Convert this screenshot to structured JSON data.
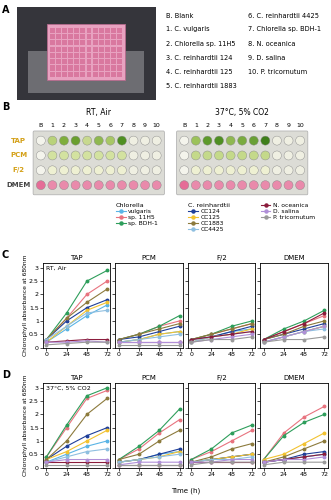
{
  "panel_a": {
    "label": "A"
  },
  "strain_key": {
    "items": [
      "B. Blank",
      "1. C. vulgaris",
      "2. Chlorella sp. 11H5",
      "3. C. reinhardtii 124",
      "4. C. reinhardtii 125",
      "5. C. reinhardtii 1883",
      "6. C. reinhardtii 4425",
      "7. Chlorella sp. BDH-1",
      "8. N. oceanica",
      "9. D. salina",
      "10. P. tricornutum"
    ]
  },
  "panel_b": {
    "label": "B",
    "conditions": [
      "RT, Air",
      "37°C, 5% CO2"
    ],
    "columns": [
      "B",
      "1",
      "2",
      "3",
      "4",
      "5",
      "6",
      "7",
      "8",
      "9",
      "10"
    ],
    "rows": [
      "TAP",
      "PCM",
      "F/2",
      "DMEM"
    ]
  },
  "legend_groups": [
    {
      "title": "Chlorella",
      "series": [
        "vulgaris",
        "sp. 11H5",
        "sp. BDH-1"
      ]
    },
    {
      "title": "C. reinhardtii",
      "series": [
        "CC124",
        "CC125",
        "CC1883",
        "CC4425"
      ]
    },
    {
      "series": [
        "N. oceanica",
        "D. salina",
        "P. tricornutum"
      ]
    }
  ],
  "x_label": "Time (h)",
  "chart_data": [
    {
      "type": "line",
      "title": "TAP",
      "panel_label": "C",
      "annotation": "RT, Air",
      "y_label": "Chlorophyll absorbance at 680nm",
      "x": [
        0,
        24,
        48,
        72
      ],
      "xlim": [
        -4,
        76
      ],
      "xticks": [
        0,
        24,
        48,
        72
      ],
      "ylim": [
        0,
        3.2
      ],
      "yticks": [
        0,
        0.5,
        1,
        1.5,
        2,
        2.5,
        3
      ],
      "marker": "o",
      "tick_labels": true,
      "series": [
        {
          "name": "vulgaris",
          "color": "#5ab4e5",
          "values": [
            0.2,
            0.7,
            1.2,
            1.6
          ]
        },
        {
          "name": "sp. 11H5",
          "color": "#e8737f",
          "values": [
            0.3,
            1.1,
            2.0,
            2.5
          ]
        },
        {
          "name": "sp. BDH-1",
          "color": "#2e9e5b",
          "values": [
            0.3,
            1.3,
            2.5,
            2.9
          ]
        },
        {
          "name": "CC124",
          "color": "#1f3f99",
          "values": [
            0.3,
            1.0,
            1.5,
            1.8
          ]
        },
        {
          "name": "CC125",
          "color": "#f2c230",
          "values": [
            0.2,
            0.8,
            1.4,
            1.7
          ]
        },
        {
          "name": "CC1883",
          "color": "#8c7a3c",
          "values": [
            0.3,
            1.1,
            1.7,
            2.2
          ]
        },
        {
          "name": "CC4425",
          "color": "#8fbfe0",
          "values": [
            0.3,
            0.8,
            1.3,
            1.4
          ]
        },
        {
          "name": "N. oceanica",
          "color": "#8b1c3c",
          "values": [
            0.2,
            0.25,
            0.3,
            0.3
          ]
        },
        {
          "name": "D. salina",
          "color": "#b08fd8",
          "values": [
            0.2,
            0.2,
            0.25,
            0.2
          ]
        },
        {
          "name": "P. tricornutum",
          "color": "#9a9a9a",
          "values": [
            0.1,
            0.15,
            0.2,
            0.2
          ]
        }
      ]
    },
    {
      "type": "line",
      "title": "PCM",
      "x": [
        0,
        24,
        48,
        72
      ],
      "xlim": [
        -4,
        76
      ],
      "xticks": [
        0,
        24,
        48,
        72
      ],
      "ylim": [
        0,
        3.2
      ],
      "yticks": [
        0,
        0.5,
        1,
        1.5,
        2,
        2.5,
        3
      ],
      "marker": "o",
      "tick_labels": "x",
      "series": [
        {
          "name": "vulgaris",
          "color": "#5ab4e5",
          "values": [
            0.2,
            0.3,
            0.5,
            0.6
          ]
        },
        {
          "name": "sp. 11H5",
          "color": "#e8737f",
          "values": [
            0.3,
            0.5,
            0.8,
            1.0
          ]
        },
        {
          "name": "sp. BDH-1",
          "color": "#2e9e5b",
          "values": [
            0.3,
            0.5,
            0.8,
            1.2
          ]
        },
        {
          "name": "CC124",
          "color": "#1f3f99",
          "values": [
            0.3,
            0.4,
            0.6,
            0.8
          ]
        },
        {
          "name": "CC125",
          "color": "#f2c230",
          "values": [
            0.2,
            0.3,
            0.5,
            0.6
          ]
        },
        {
          "name": "CC1883",
          "color": "#8c7a3c",
          "values": [
            0.3,
            0.5,
            0.7,
            0.9
          ]
        },
        {
          "name": "CC4425",
          "color": "#8fbfe0",
          "values": [
            0.2,
            0.3,
            0.4,
            0.5
          ]
        },
        {
          "name": "N. oceanica",
          "color": "#8b1c3c",
          "values": [
            0.2,
            0.2,
            0.2,
            0.2
          ]
        },
        {
          "name": "D. salina",
          "color": "#b08fd8",
          "values": [
            0.2,
            0.2,
            0.2,
            0.2
          ]
        },
        {
          "name": "P. tricornutum",
          "color": "#9a9a9a",
          "values": [
            0.1,
            0.1,
            0.1,
            0.1
          ]
        }
      ]
    },
    {
      "type": "line",
      "title": "F/2",
      "x": [
        0,
        24,
        48,
        72
      ],
      "xlim": [
        -4,
        76
      ],
      "xticks": [
        0,
        24,
        48,
        72
      ],
      "ylim": [
        0,
        3.2
      ],
      "yticks": [
        0,
        0.5,
        1,
        1.5,
        2,
        2.5,
        3
      ],
      "marker": "o",
      "tick_labels": "x",
      "series": [
        {
          "name": "vulgaris",
          "color": "#5ab4e5",
          "values": [
            0.2,
            0.4,
            0.6,
            0.7
          ]
        },
        {
          "name": "sp. 11H5",
          "color": "#e8737f",
          "values": [
            0.3,
            0.5,
            0.7,
            0.9
          ]
        },
        {
          "name": "sp. BDH-1",
          "color": "#2e9e5b",
          "values": [
            0.3,
            0.5,
            0.8,
            1.0
          ]
        },
        {
          "name": "CC124",
          "color": "#1f3f99",
          "values": [
            0.3,
            0.4,
            0.6,
            0.8
          ]
        },
        {
          "name": "CC125",
          "color": "#f2c230",
          "values": [
            0.2,
            0.4,
            0.5,
            0.7
          ]
        },
        {
          "name": "CC1883",
          "color": "#8c7a3c",
          "values": [
            0.3,
            0.5,
            0.7,
            0.9
          ]
        },
        {
          "name": "CC4425",
          "color": "#8fbfe0",
          "values": [
            0.2,
            0.4,
            0.5,
            0.6
          ]
        },
        {
          "name": "N. oceanica",
          "color": "#8b1c3c",
          "values": [
            0.3,
            0.4,
            0.5,
            0.6
          ]
        },
        {
          "name": "D. salina",
          "color": "#b08fd8",
          "values": [
            0.2,
            0.3,
            0.4,
            0.5
          ]
        },
        {
          "name": "P. tricornutum",
          "color": "#9a9a9a",
          "values": [
            0.2,
            0.3,
            0.3,
            0.4
          ]
        }
      ]
    },
    {
      "type": "line",
      "title": "DMEM",
      "x": [
        0,
        24,
        48,
        72
      ],
      "xlim": [
        -4,
        76
      ],
      "xticks": [
        0,
        24,
        48,
        72
      ],
      "ylim": [
        0,
        3.2
      ],
      "yticks": [
        0,
        0.5,
        1,
        1.5,
        2,
        2.5,
        3
      ],
      "marker": "o",
      "tick_labels": "x",
      "series": [
        {
          "name": "vulgaris",
          "color": "#5ab4e5",
          "values": [
            0.2,
            0.4,
            0.6,
            0.8
          ]
        },
        {
          "name": "sp. 11H5",
          "color": "#e8737f",
          "values": [
            0.3,
            0.6,
            0.9,
            1.2
          ]
        },
        {
          "name": "sp. BDH-1",
          "color": "#2e9e5b",
          "values": [
            0.3,
            0.7,
            1.0,
            1.4
          ]
        },
        {
          "name": "CC124",
          "color": "#1f3f99",
          "values": [
            0.3,
            0.5,
            0.7,
            0.9
          ]
        },
        {
          "name": "CC125",
          "color": "#f2c230",
          "values": [
            0.2,
            0.4,
            0.6,
            0.8
          ]
        },
        {
          "name": "CC1883",
          "color": "#8c7a3c",
          "values": [
            0.3,
            0.5,
            0.8,
            1.0
          ]
        },
        {
          "name": "CC4425",
          "color": "#8fbfe0",
          "values": [
            0.2,
            0.4,
            0.6,
            0.7
          ]
        },
        {
          "name": "N. oceanica",
          "color": "#8b1c3c",
          "values": [
            0.3,
            0.6,
            0.9,
            1.3
          ]
        },
        {
          "name": "D. salina",
          "color": "#b08fd8",
          "values": [
            0.2,
            0.4,
            0.6,
            0.8
          ]
        },
        {
          "name": "P. tricornutum",
          "color": "#9a9a9a",
          "values": [
            0.2,
            0.3,
            0.3,
            0.4
          ]
        }
      ]
    },
    {
      "type": "line",
      "title": "TAP",
      "panel_label": "D",
      "annotation": "37°C, 5% CO2",
      "y_label": "Chlorophyll absorbance at 680nm",
      "x": [
        0,
        24,
        48,
        72
      ],
      "xlim": [
        -4,
        76
      ],
      "xticks": [
        0,
        24,
        48,
        72
      ],
      "ylim": [
        0,
        3.2
      ],
      "yticks": [
        0,
        0.5,
        1,
        1.5,
        2,
        2.5,
        3
      ],
      "marker": "o",
      "tick_labels": true,
      "series": [
        {
          "name": "vulgaris",
          "color": "#5ab4e5",
          "values": [
            0.2,
            0.5,
            0.8,
            1.0
          ]
        },
        {
          "name": "sp. 11H5",
          "color": "#e8737f",
          "values": [
            0.4,
            1.5,
            2.6,
            2.9
          ]
        },
        {
          "name": "sp. BDH-1",
          "color": "#2e9e5b",
          "values": [
            0.4,
            1.6,
            2.7,
            3.0
          ]
        },
        {
          "name": "CC124",
          "color": "#1f3f99",
          "values": [
            0.3,
            0.8,
            1.2,
            1.5
          ]
        },
        {
          "name": "CC125",
          "color": "#f2c230",
          "values": [
            0.3,
            0.6,
            1.0,
            1.4
          ]
        },
        {
          "name": "CC1883",
          "color": "#8c7a3c",
          "values": [
            0.3,
            1.0,
            2.0,
            2.6
          ]
        },
        {
          "name": "CC4425",
          "color": "#8fbfe0",
          "values": [
            0.2,
            0.4,
            0.6,
            0.7
          ]
        },
        {
          "name": "N. oceanica",
          "color": "#8b1c3c",
          "values": [
            0.2,
            0.2,
            0.2,
            0.2
          ]
        },
        {
          "name": "D. salina",
          "color": "#b08fd8",
          "values": [
            0.2,
            0.3,
            0.3,
            0.3
          ]
        },
        {
          "name": "P. tricornutum",
          "color": "#9a9a9a",
          "values": [
            0.1,
            0.1,
            0.1,
            0.1
          ]
        }
      ]
    },
    {
      "type": "line",
      "title": "PCM",
      "x": [
        0,
        24,
        48,
        72
      ],
      "xlim": [
        -4,
        76
      ],
      "xticks": [
        0,
        24,
        48,
        72
      ],
      "ylim": [
        0,
        3.2
      ],
      "yticks": [
        0,
        0.5,
        1,
        1.5,
        2,
        2.5,
        3
      ],
      "marker": "o",
      "tick_labels": "x",
      "series": [
        {
          "name": "vulgaris",
          "color": "#5ab4e5",
          "values": [
            0.2,
            0.3,
            0.5,
            0.6
          ]
        },
        {
          "name": "sp. 11H5",
          "color": "#e8737f",
          "values": [
            0.3,
            0.7,
            1.3,
            1.8
          ]
        },
        {
          "name": "sp. BDH-1",
          "color": "#2e9e5b",
          "values": [
            0.3,
            0.8,
            1.4,
            2.2
          ]
        },
        {
          "name": "CC124",
          "color": "#1f3f99",
          "values": [
            0.2,
            0.3,
            0.5,
            0.7
          ]
        },
        {
          "name": "CC125",
          "color": "#f2c230",
          "values": [
            0.2,
            0.3,
            0.4,
            0.6
          ]
        },
        {
          "name": "CC1883",
          "color": "#8c7a3c",
          "values": [
            0.3,
            0.5,
            1.0,
            1.4
          ]
        },
        {
          "name": "CC4425",
          "color": "#8fbfe0",
          "values": [
            0.2,
            0.3,
            0.4,
            0.5
          ]
        },
        {
          "name": "N. oceanica",
          "color": "#8b1c3c",
          "values": [
            0.1,
            0.1,
            0.1,
            0.1
          ]
        },
        {
          "name": "D. salina",
          "color": "#b08fd8",
          "values": [
            0.1,
            0.2,
            0.2,
            0.2
          ]
        },
        {
          "name": "P. tricornutum",
          "color": "#9a9a9a",
          "values": [
            0.1,
            0.1,
            0.1,
            0.1
          ]
        }
      ]
    },
    {
      "type": "line",
      "title": "F/2",
      "x": [
        0,
        24,
        48,
        72
      ],
      "xlim": [
        -4,
        76
      ],
      "xticks": [
        0,
        24,
        48,
        72
      ],
      "ylim": [
        0,
        3.2
      ],
      "yticks": [
        0,
        0.5,
        1,
        1.5,
        2,
        2.5,
        3
      ],
      "marker": "o",
      "tick_labels": "x",
      "series": [
        {
          "name": "vulgaris",
          "color": "#5ab4e5",
          "values": [
            0.2,
            0.3,
            0.4,
            0.5
          ]
        },
        {
          "name": "sp. 11H5",
          "color": "#e8737f",
          "values": [
            0.3,
            0.6,
            1.0,
            1.4
          ]
        },
        {
          "name": "sp. BDH-1",
          "color": "#2e9e5b",
          "values": [
            0.3,
            0.7,
            1.3,
            1.6
          ]
        },
        {
          "name": "CC124",
          "color": "#1f3f99",
          "values": [
            0.2,
            0.3,
            0.4,
            0.5
          ]
        },
        {
          "name": "CC125",
          "color": "#f2c230",
          "values": [
            0.2,
            0.3,
            0.4,
            0.5
          ]
        },
        {
          "name": "CC1883",
          "color": "#8c7a3c",
          "values": [
            0.2,
            0.4,
            0.7,
            0.9
          ]
        },
        {
          "name": "CC4425",
          "color": "#8fbfe0",
          "values": [
            0.2,
            0.3,
            0.3,
            0.4
          ]
        },
        {
          "name": "N. oceanica",
          "color": "#8b1c3c",
          "values": [
            0.2,
            0.2,
            0.2,
            0.2
          ]
        },
        {
          "name": "D. salina",
          "color": "#b08fd8",
          "values": [
            0.2,
            0.2,
            0.3,
            0.3
          ]
        },
        {
          "name": "P. tricornutum",
          "color": "#9a9a9a",
          "values": [
            0.1,
            0.2,
            0.2,
            0.2
          ]
        }
      ]
    },
    {
      "type": "line",
      "title": "DMEM",
      "x": [
        0,
        24,
        48,
        72
      ],
      "xlim": [
        -4,
        76
      ],
      "xticks": [
        0,
        24,
        48,
        72
      ],
      "ylim": [
        0,
        3.2
      ],
      "yticks": [
        0,
        0.5,
        1,
        1.5,
        2,
        2.5,
        3
      ],
      "marker": "o",
      "tick_labels": "x",
      "series": [
        {
          "name": "vulgaris",
          "color": "#5ab4e5",
          "values": [
            0.2,
            0.3,
            0.4,
            0.5
          ]
        },
        {
          "name": "sp. 11H5",
          "color": "#e8737f",
          "values": [
            0.3,
            1.3,
            1.9,
            2.3
          ]
        },
        {
          "name": "sp. BDH-1",
          "color": "#2e9e5b",
          "values": [
            0.3,
            1.2,
            1.7,
            2.0
          ]
        },
        {
          "name": "CC124",
          "color": "#1f3f99",
          "values": [
            0.2,
            0.3,
            0.5,
            0.6
          ]
        },
        {
          "name": "CC125",
          "color": "#f2c230",
          "values": [
            0.3,
            0.5,
            0.9,
            1.3
          ]
        },
        {
          "name": "CC1883",
          "color": "#8c7a3c",
          "values": [
            0.2,
            0.4,
            0.7,
            1.0
          ]
        },
        {
          "name": "CC4425",
          "color": "#8fbfe0",
          "values": [
            0.2,
            0.3,
            0.4,
            0.5
          ]
        },
        {
          "name": "N. oceanica",
          "color": "#8b1c3c",
          "values": [
            0.2,
            0.3,
            0.4,
            0.5
          ]
        },
        {
          "name": "D. salina",
          "color": "#b08fd8",
          "values": [
            0.2,
            0.3,
            0.3,
            0.4
          ]
        },
        {
          "name": "P. tricornutum",
          "color": "#9a9a9a",
          "values": [
            0.1,
            0.2,
            0.2,
            0.2
          ]
        }
      ]
    }
  ]
}
